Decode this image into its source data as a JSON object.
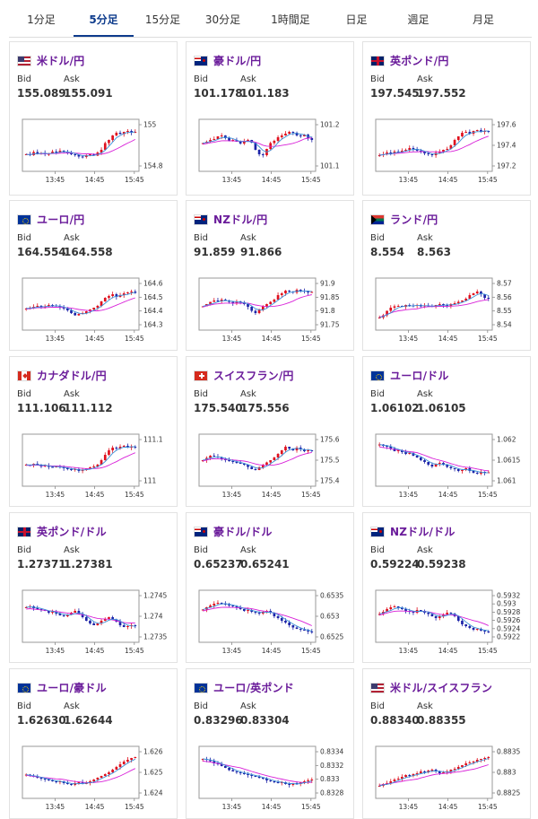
{
  "tabs": [
    {
      "label": "1分足",
      "active": false
    },
    {
      "label": "5分足",
      "active": true
    },
    {
      "label": "15分足",
      "active": false
    },
    {
      "label": "30分足",
      "active": false
    },
    {
      "label": "1時間足",
      "active": false
    },
    {
      "label": "日足",
      "active": false
    },
    {
      "label": "週足",
      "active": false
    },
    {
      "label": "月足",
      "active": false
    }
  ],
  "bid_label": "Bid",
  "ask_label": "Ask",
  "x_ticks": [
    "13:45",
    "14:45",
    "15:45"
  ],
  "colors": {
    "up": "#e0101e",
    "down": "#1c23a8",
    "ma_short": "#3b8fd6",
    "ma_long": "#d81fd8",
    "pair_name": "#6a1b9a",
    "tab_active": "#0d3b8c"
  },
  "cards": [
    {
      "pair": "米ドル/円",
      "flag": "us-jp-flag",
      "bid": "155.089",
      "ask": "155.091",
      "y_ticks": [
        "155",
        "154.8"
      ]
    },
    {
      "pair": "豪ドル/円",
      "flag": "au-jp-flag",
      "bid": "101.178",
      "ask": "101.183",
      "y_ticks": [
        "101.2",
        "101.1"
      ]
    },
    {
      "pair": "英ポンド/円",
      "flag": "gb-jp-flag",
      "bid": "197.545",
      "ask": "197.552",
      "y_ticks": [
        "197.6",
        "197.4",
        "197.2"
      ]
    },
    {
      "pair": "ユーロ/円",
      "flag": "eu-jp-flag",
      "bid": "164.554",
      "ask": "164.558",
      "y_ticks": [
        "164.6",
        "164.5",
        "164.4",
        "164.3"
      ]
    },
    {
      "pair": "NZドル/円",
      "flag": "nz-jp-flag",
      "bid": "91.859",
      "ask": "91.866",
      "y_ticks": [
        "91.9",
        "91.85",
        "91.8",
        "91.75"
      ]
    },
    {
      "pair": "ランド/円",
      "flag": "za-jp-flag",
      "bid": "8.554",
      "ask": "8.563",
      "y_ticks": [
        "8.57",
        "8.56",
        "8.55",
        "8.54"
      ]
    },
    {
      "pair": "カナダドル/円",
      "flag": "ca-jp-flag",
      "bid": "111.106",
      "ask": "111.112",
      "y_ticks": [
        "111.1",
        "111"
      ]
    },
    {
      "pair": "スイスフラン/円",
      "flag": "ch-jp-flag",
      "bid": "175.540",
      "ask": "175.556",
      "y_ticks": [
        "175.6",
        "175.5",
        "175.4"
      ]
    },
    {
      "pair": "ユーロ/ドル",
      "flag": "eu-us-flag",
      "bid": "1.06102",
      "ask": "1.06105",
      "y_ticks": [
        "1.062",
        "1.0615",
        "1.061"
      ]
    },
    {
      "pair": "英ポンド/ドル",
      "flag": "gb-us-flag",
      "bid": "1.27371",
      "ask": "1.27381",
      "y_ticks": [
        "1.2745",
        "1.274",
        "1.2735"
      ]
    },
    {
      "pair": "豪ドル/ドル",
      "flag": "au-us-flag",
      "bid": "0.65237",
      "ask": "0.65241",
      "y_ticks": [
        "0.6535",
        "0.653",
        "0.6525"
      ]
    },
    {
      "pair": "NZドル/ドル",
      "flag": "nz-us-flag",
      "bid": "0.59224",
      "ask": "0.59238",
      "y_ticks": [
        "0.5932",
        "0.593",
        "0.5928",
        "0.5926",
        "0.5924",
        "0.5922"
      ]
    },
    {
      "pair": "ユーロ/豪ドル",
      "flag": "eu-au-flag",
      "bid": "1.62630",
      "ask": "1.62644",
      "y_ticks": [
        "1.626",
        "1.625",
        "1.624"
      ]
    },
    {
      "pair": "ユーロ/英ポンド",
      "flag": "eu-gb-flag",
      "bid": "0.83296",
      "ask": "0.83304",
      "y_ticks": [
        "0.8334",
        "0.8332",
        "0.833",
        "0.8328"
      ]
    },
    {
      "pair": "米ドル/スイスフラン",
      "flag": "us-ch-flag",
      "bid": "0.88340",
      "ask": "0.88355",
      "y_ticks": [
        "0.8835",
        "0.883",
        "0.8825"
      ]
    }
  ]
}
